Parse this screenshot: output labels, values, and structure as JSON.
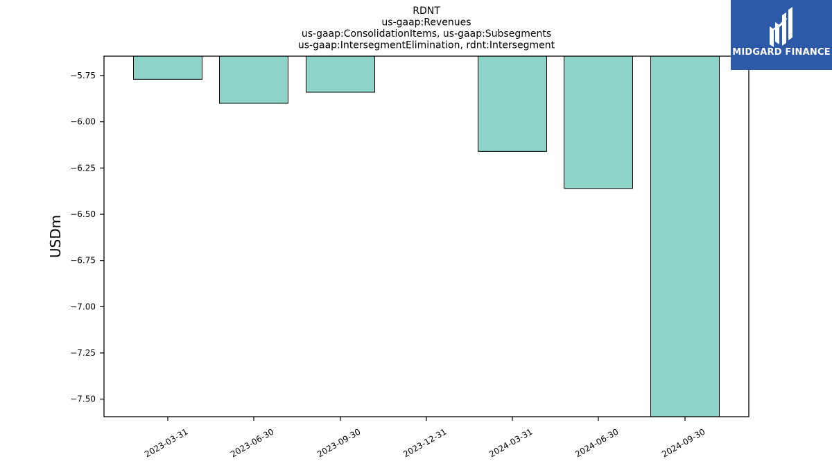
{
  "chart_data": {
    "type": "bar",
    "title_lines": [
      "RDNT",
      "us-gaap:Revenues",
      "us-gaap:ConsolidationItems, us-gaap:Subsegments",
      "us-gaap:IntersegmentElimination, rdnt:Intersegment"
    ],
    "ylabel": "USDm",
    "xlabel": "",
    "categories": [
      "2023-03-31",
      "2023-06-30",
      "2023-09-30",
      "2023-12-31",
      "2024-03-31",
      "2024-06-30",
      "2024-09-30"
    ],
    "values": [
      -5.77,
      -5.9,
      -5.84,
      null,
      -6.16,
      -6.36,
      -7.6
    ],
    "ylim": [
      -7.595,
      -5.645
    ],
    "yticks": [
      -5.75,
      -6.0,
      -6.25,
      -6.5,
      -6.75,
      -7.0,
      -7.25,
      -7.5
    ],
    "ytick_labels": [
      "−5.75",
      "−6.00",
      "−6.25",
      "−6.50",
      "−6.75",
      "−7.00",
      "−7.25",
      "−7.50"
    ],
    "bar_color": "#8dd3c7",
    "bar_edge_color": "#000000",
    "grid": false,
    "legend": "none"
  },
  "logo": {
    "text": "MIDGARD FINANCE",
    "background": "#2d5aa8",
    "text_color": "#ffffff"
  }
}
